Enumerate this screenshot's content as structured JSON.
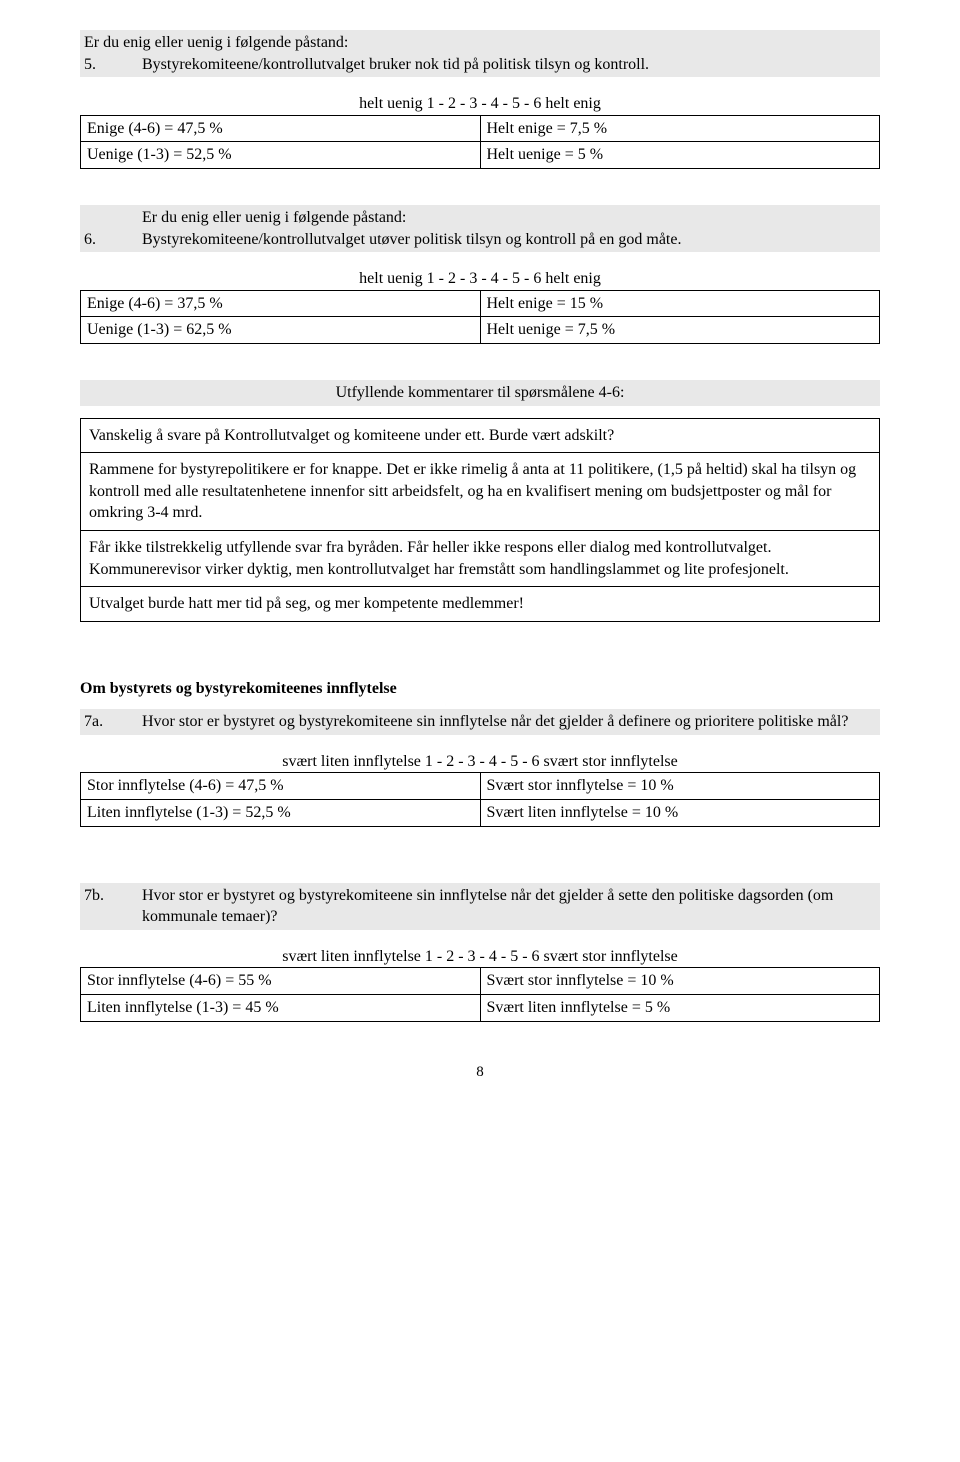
{
  "q5": {
    "intro": "Er du enig eller uenig i følgende påstand:",
    "num": "5.",
    "text": "Bystyrekomiteene/kontrollutvalget bruker nok tid på politisk tilsyn og kontroll.",
    "scale": "helt uenig 1 - 2 - 3 - 4 - 5 - 6 helt enig",
    "l1": "Enige (4-6) = 47,5 %",
    "r1": "Helt enige = 7,5 %",
    "l2": "Uenige (1-3) = 52,5 %",
    "r2": "Helt uenige = 5 %"
  },
  "q6": {
    "intro": "Er du enig eller uenig i følgende påstand:",
    "num": "6.",
    "text": "Bystyrekomiteene/kontrollutvalget utøver politisk tilsyn og kontroll på en god måte.",
    "scale": "helt uenig 1 - 2 - 3 - 4 - 5 - 6 helt enig",
    "l1": "Enige (4-6) = 37,5 %",
    "r1": "Helt enige = 15 %",
    "l2": "Uenige (1-3) = 62,5 %",
    "r2": "Helt uenige = 7,5 %"
  },
  "comments": {
    "header": "Utfyllende kommentarer til spørsmålene 4-6:",
    "c1": "Vanskelig å svare på Kontrollutvalget og komiteene under ett. Burde vært adskilt?",
    "c2": "Rammene for bystyrepolitikere er for knappe. Det er ikke rimelig å anta at 11 politikere, (1,5 på heltid) skal ha tilsyn og kontroll med alle resultatenhetene innenfor sitt arbeidsfelt, og ha en kvalifisert mening om budsjettposter og mål for omkring 3-4 mrd.",
    "c3": "Får ikke tilstrekkelig utfyllende svar fra byråden. Får heller ikke respons eller dialog med kontrollutvalget. Kommunerevisor virker dyktig, men kontrollutvalget har fremstått som handlingslammet og lite profesjonelt.",
    "c4": "Utvalget burde hatt mer tid på seg, og mer kompetente medlemmer!"
  },
  "section": {
    "title": "Om bystyrets og bystyrekomiteenes innflytelse"
  },
  "q7a": {
    "num": "7a.",
    "text": "Hvor stor er bystyret og bystyrekomiteene sin innflytelse når det gjelder å definere og prioritere politiske mål?",
    "scale": "svært liten innflytelse 1 - 2 - 3 - 4 - 5 - 6 svært stor innflytelse",
    "l1": "Stor innflytelse (4-6) = 47,5 %",
    "r1": "Svært stor innflytelse = 10 %",
    "l2": "Liten innflytelse (1-3) = 52,5 %",
    "r2": "Svært liten innflytelse = 10 %"
  },
  "q7b": {
    "num": "7b.",
    "text": "Hvor stor er bystyret og bystyrekomiteene sin innflytelse når det gjelder å sette den politiske dagsorden (om kommunale temaer)?",
    "scale": "svært liten innflytelse 1 - 2 - 3 - 4 - 5 - 6 svært stor innflytelse",
    "l1": "Stor innflytelse (4-6) = 55 %",
    "r1": "Svært stor innflytelse = 10 %",
    "l2": "Liten innflytelse (1-3) = 45 %",
    "r2": "Svært liten innflytelse = 5 %"
  },
  "pagenum": "8"
}
